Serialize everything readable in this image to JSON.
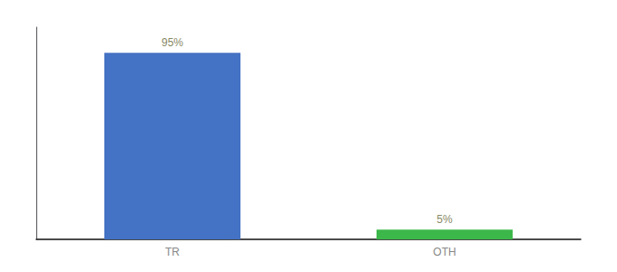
{
  "chart_data": {
    "type": "bar",
    "categories": [
      "TR",
      "OTH"
    ],
    "values": [
      95,
      5
    ],
    "colors": [
      "#4472c4",
      "#3cb84a"
    ],
    "value_labels": [
      "95%",
      "5%"
    ],
    "data_labels": true,
    "ylim": [
      0,
      108
    ],
    "yticks": [],
    "tick_labels": "x",
    "grid": false
  }
}
